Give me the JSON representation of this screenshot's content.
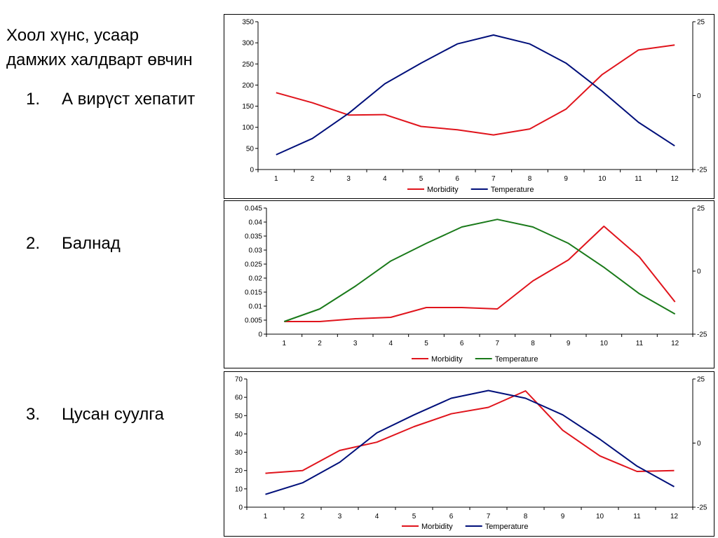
{
  "heading": {
    "line1": "Хоол хүнс, усаар",
    "line2": "дамжих халдварт өвчин"
  },
  "list": [
    {
      "num": "1.",
      "label": "А вирүст хепатит"
    },
    {
      "num": "2.",
      "label": "Балнад"
    },
    {
      "num": "3.",
      "label": "Цусан суулга"
    }
  ],
  "chart_data": [
    {
      "type": "line",
      "x": [
        1,
        2,
        3,
        4,
        5,
        6,
        7,
        8,
        9,
        10,
        11,
        12
      ],
      "ylim": [
        0,
        350
      ],
      "yticks": [
        "0",
        "50",
        "100",
        "150",
        "200",
        "250",
        "300",
        "350"
      ],
      "y2lim": [
        -25,
        25
      ],
      "y2ticks": [
        "-25",
        "0",
        "25"
      ],
      "legend": "bottom-center",
      "series": [
        {
          "name": "Morbidity",
          "axis": "left",
          "color": "#e0141c",
          "values": [
            182,
            158,
            129,
            130,
            102,
            94,
            82,
            96,
            143,
            225,
            283,
            295
          ]
        },
        {
          "name": "Temperature",
          "axis": "right",
          "color": "#000f7a",
          "values": [
            -20,
            -14.5,
            -6,
            4,
            11,
            17.5,
            20.5,
            17.5,
            11,
            1.5,
            -9,
            -17
          ]
        }
      ]
    },
    {
      "type": "line",
      "x": [
        1,
        2,
        3,
        4,
        5,
        6,
        7,
        8,
        9,
        10,
        11,
        12
      ],
      "ylim": [
        0,
        0.045
      ],
      "yticks": [
        "0",
        "0.005",
        "0.01",
        "0.015",
        "0.02",
        "0.025",
        "0.03",
        "0.035",
        "0.04",
        "0.045"
      ],
      "y2lim": [
        -25,
        25
      ],
      "y2ticks": [
        "-25",
        "0",
        "25"
      ],
      "legend": "bottom-center",
      "series": [
        {
          "name": "Morbidity",
          "axis": "left",
          "color": "#e0141c",
          "values": [
            0.0045,
            0.0045,
            0.0055,
            0.006,
            0.0095,
            0.0095,
            0.009,
            0.019,
            0.0265,
            0.0385,
            0.0275,
            0.0115
          ]
        },
        {
          "name": "Temperature",
          "axis": "right",
          "color": "#1a7a1a",
          "values": [
            -20,
            -15,
            -6,
            4,
            11,
            17.5,
            20.5,
            17.5,
            11,
            1.5,
            -9,
            -17
          ]
        }
      ]
    },
    {
      "type": "line",
      "x": [
        1,
        2,
        3,
        4,
        5,
        6,
        7,
        8,
        9,
        10,
        11,
        12
      ],
      "ylim": [
        0,
        70
      ],
      "yticks": [
        "0",
        "10",
        "20",
        "30",
        "40",
        "50",
        "60",
        "70"
      ],
      "y2lim": [
        -25,
        25
      ],
      "y2ticks": [
        "-25",
        "0",
        "25"
      ],
      "legend": "bottom-center",
      "series": [
        {
          "name": "Morbidity",
          "axis": "left",
          "color": "#e0141c",
          "values": [
            18.5,
            20,
            31,
            35.5,
            44,
            51,
            54.5,
            63.5,
            42,
            28,
            19.5,
            20
          ]
        },
        {
          "name": "Temperature",
          "axis": "right",
          "color": "#000f7a",
          "values": [
            -20,
            -15.5,
            -7.5,
            4,
            11,
            17.5,
            20.5,
            17.5,
            11,
            1.5,
            -9,
            -17
          ]
        }
      ]
    }
  ]
}
